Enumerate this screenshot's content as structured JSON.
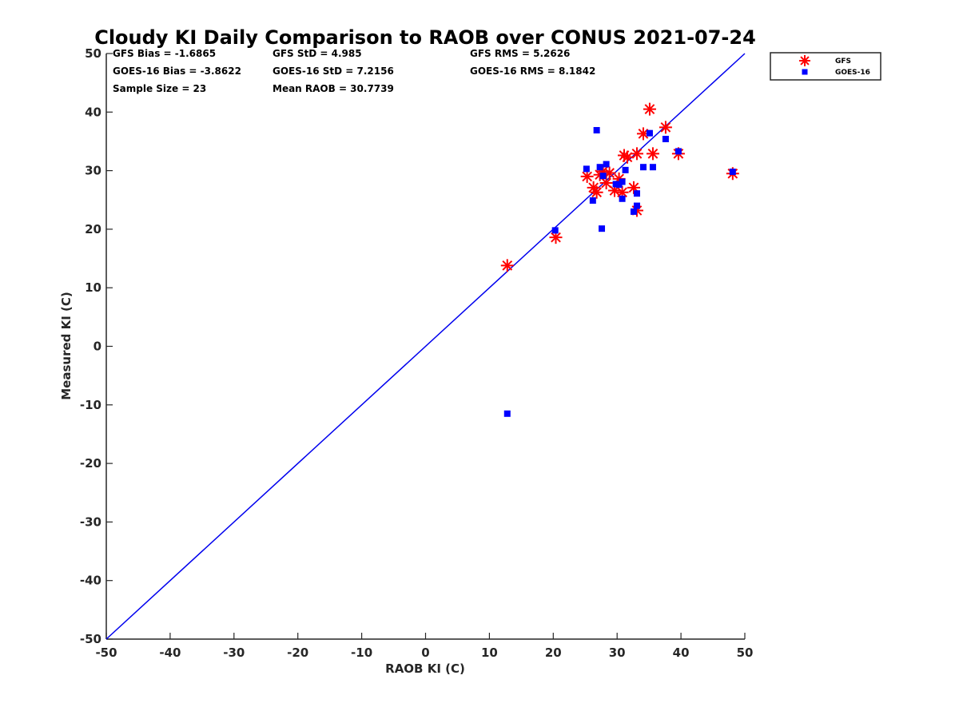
{
  "chart_data": {
    "type": "scatter",
    "title": "Cloudy KI Daily Comparison to RAOB over CONUS 2021-07-24",
    "xlabel": "RAOB KI (C)",
    "ylabel": "Measured KI (C)",
    "xlim": [
      -50,
      50
    ],
    "ylim": [
      -50,
      50
    ],
    "xticks": [
      "-50",
      "-40",
      "-30",
      "-20",
      "-10",
      "0",
      "10",
      "20",
      "30",
      "40",
      "50"
    ],
    "yticks": [
      "-50",
      "-40",
      "-30",
      "-20",
      "-10",
      "0",
      "10",
      "20",
      "30",
      "40",
      "50"
    ],
    "grid": false,
    "legend_position": "outside top-right",
    "one_to_one_line": {
      "from": [
        -50,
        -50
      ],
      "to": [
        50,
        50
      ],
      "color": "#0000ee"
    },
    "stats": [
      "GFS Bias = -1.6865",
      "GFS StD = 4.985",
      "GFS RMS = 5.2626",
      "GOES-16 Bias = -3.8622",
      "GOES-16 StD = 7.2156",
      "GOES-16 RMS = 8.1842",
      "Sample Size = 23",
      "Mean RAOB = 30.7739"
    ],
    "series": [
      {
        "name": "GFS",
        "marker": "asterisk",
        "color": "#ff0000",
        "points": [
          [
            12.8,
            13.8
          ],
          [
            20.4,
            18.6
          ],
          [
            25.3,
            29.0
          ],
          [
            26.3,
            27.1
          ],
          [
            26.8,
            26.3
          ],
          [
            27.3,
            29.3
          ],
          [
            27.8,
            29.9
          ],
          [
            28.3,
            27.9
          ],
          [
            28.8,
            29.6
          ],
          [
            29.6,
            26.6
          ],
          [
            30.3,
            28.6
          ],
          [
            30.8,
            26.3
          ],
          [
            31.1,
            32.6
          ],
          [
            31.6,
            32.3
          ],
          [
            32.6,
            27.1
          ],
          [
            33.1,
            23.2
          ],
          [
            33.1,
            32.9
          ],
          [
            34.1,
            36.3
          ],
          [
            35.1,
            40.5
          ],
          [
            35.6,
            32.9
          ],
          [
            37.6,
            37.4
          ],
          [
            39.6,
            32.9
          ],
          [
            48.1,
            29.5
          ]
        ]
      },
      {
        "name": "GOES-16",
        "marker": "square",
        "color": "#0000ff",
        "points": [
          [
            12.8,
            -11.5
          ],
          [
            20.3,
            19.8
          ],
          [
            25.2,
            30.3
          ],
          [
            26.2,
            24.9
          ],
          [
            26.8,
            36.9
          ],
          [
            27.3,
            30.6
          ],
          [
            27.6,
            20.1
          ],
          [
            28.3,
            31.1
          ],
          [
            29.8,
            27.7
          ],
          [
            30.3,
            27.6
          ],
          [
            30.8,
            28.1
          ],
          [
            30.8,
            25.2
          ],
          [
            31.3,
            30.1
          ],
          [
            32.6,
            23.0
          ],
          [
            33.1,
            24.0
          ],
          [
            33.1,
            26.1
          ],
          [
            34.1,
            30.6
          ],
          [
            35.1,
            36.4
          ],
          [
            35.6,
            30.6
          ],
          [
            37.6,
            35.4
          ],
          [
            39.6,
            33.3
          ],
          [
            48.1,
            29.8
          ],
          [
            27.8,
            29.1
          ]
        ]
      }
    ]
  }
}
